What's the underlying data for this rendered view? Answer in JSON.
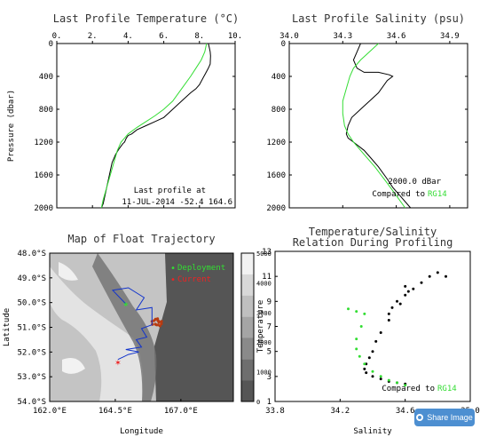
{
  "chart_data": [
    {
      "type": "line",
      "title": "Last Profile Temperature (°C)",
      "xlabel": "",
      "ylabel": "Pressure (dbar)",
      "xlim": [
        0,
        10
      ],
      "ylim": [
        2000,
        0
      ],
      "xticks": [
        "0.",
        "2.",
        "4.",
        "6.",
        "8.",
        "10."
      ],
      "yticks": [
        "0",
        "400",
        "800",
        "1200",
        "1600",
        "2000"
      ],
      "annotation_lines": [
        "Last profile at",
        "11-JUL-2014   -52.4  164.6"
      ],
      "series": [
        {
          "color": "#000000",
          "x": [
            8.5,
            8.55,
            8.6,
            8.62,
            8.6,
            8.5,
            8.3,
            8.25,
            8.0,
            7.8,
            7.5,
            7.0,
            6.5,
            6.0,
            5.5,
            5.0,
            4.5,
            4.2,
            4.0,
            3.9,
            3.8,
            3.7,
            3.5,
            3.3,
            3.1,
            3.0,
            2.9,
            2.8,
            2.7,
            2.6,
            2.5
          ],
          "y": [
            0,
            50,
            100,
            150,
            250,
            300,
            380,
            400,
            500,
            550,
            600,
            700,
            800,
            900,
            950,
            1000,
            1050,
            1100,
            1120,
            1150,
            1200,
            1220,
            1280,
            1350,
            1450,
            1550,
            1650,
            1750,
            1850,
            1950,
            2000
          ]
        },
        {
          "color": "#33dd33",
          "x": [
            8.4,
            8.3,
            8.1,
            7.8,
            7.5,
            7.0,
            6.5,
            6.0,
            5.5,
            5.0,
            4.5,
            4.0,
            3.8,
            3.6,
            3.4,
            3.2,
            3.0,
            2.8,
            2.6,
            2.5
          ],
          "y": [
            0,
            100,
            200,
            300,
            400,
            550,
            700,
            800,
            880,
            950,
            1020,
            1100,
            1150,
            1200,
            1300,
            1450,
            1600,
            1750,
            1900,
            2000
          ]
        }
      ]
    },
    {
      "type": "line",
      "title": "Last Profile Salinity (psu)",
      "xlabel": "",
      "ylabel": "",
      "xlim": [
        34.0,
        35.0
      ],
      "ylim": [
        2000,
        0
      ],
      "xticks": [
        "34.0",
        "34.3",
        "34.6",
        "34.9"
      ],
      "yticks": [
        "0",
        "400",
        "800",
        "1200",
        "1600",
        "2000"
      ],
      "annotation_lines": [
        "2000.0 dBar",
        "Compared to"
      ],
      "annotation_highlight": "RG14",
      "series": [
        {
          "color": "#000000",
          "x": [
            34.4,
            34.38,
            34.36,
            34.38,
            34.42,
            34.5,
            34.56,
            34.58,
            34.55,
            34.5,
            34.45,
            34.4,
            34.35,
            34.33,
            34.32,
            34.33,
            34.36,
            34.42,
            34.46,
            34.5,
            34.55,
            34.58,
            34.62,
            34.68
          ],
          "y": [
            0,
            100,
            200,
            300,
            350,
            350,
            380,
            400,
            450,
            600,
            700,
            800,
            900,
            1000,
            1100,
            1150,
            1200,
            1300,
            1400,
            1500,
            1650,
            1750,
            1850,
            2000
          ]
        },
        {
          "color": "#33dd33",
          "x": [
            34.5,
            34.45,
            34.4,
            34.36,
            34.34,
            34.32,
            34.3,
            34.3,
            34.31,
            34.33,
            34.36,
            34.42,
            34.48,
            34.55,
            34.6,
            34.65
          ],
          "y": [
            0,
            100,
            200,
            300,
            400,
            550,
            700,
            850,
            1000,
            1100,
            1200,
            1350,
            1500,
            1700,
            1850,
            2000
          ]
        }
      ]
    },
    {
      "type": "heatmap",
      "title": "Map of Float Trajectory",
      "xlabel": "Longitude",
      "ylabel": "Latitude",
      "xlim": [
        162.0,
        169.0
      ],
      "ylim": [
        54.0,
        48.0
      ],
      "xticks": [
        "162.0°E",
        "164.5°E",
        "167.0°E"
      ],
      "yticks": [
        "48.0°S",
        "49.0°S",
        "50.0°S",
        "51.0°S",
        "52.0°S",
        "53.0°S",
        "54.0°S"
      ],
      "colorbar_ticks": [
        "5000",
        "4000",
        "3000",
        "2000",
        "1000",
        "0"
      ],
      "legend": [
        {
          "label": "Deployment",
          "color": "#33dd33"
        },
        {
          "label": "Current",
          "color": "#ee2222"
        }
      ],
      "trajectory": {
        "color": "#1133cc",
        "lon": [
          164.9,
          164.4,
          165.0,
          165.6,
          165.3,
          165.9,
          165.9,
          165.5,
          165.7,
          165.3,
          165.5,
          164.9,
          165.4,
          165.0,
          164.8,
          164.6
        ],
        "lat": [
          50.05,
          49.5,
          49.4,
          49.8,
          50.3,
          50.2,
          50.9,
          51.05,
          51.4,
          51.5,
          51.8,
          51.9,
          52.0,
          52.1,
          52.2,
          52.3
        ]
      },
      "deployment": {
        "lon": 164.9,
        "lat": 50.05
      },
      "current": {
        "lon": 164.6,
        "lat": 52.4
      },
      "cluster": {
        "lon": 166.1,
        "lat": 50.8,
        "color": "#b83a10"
      }
    },
    {
      "type": "scatter",
      "title": "Temperature/Salinity",
      "subtitle": "Relation During Profiling",
      "xlabel": "Salinity",
      "ylabel": "Temperature",
      "xlim": [
        33.8,
        35.0
      ],
      "ylim": [
        1,
        13
      ],
      "xticks": [
        "33.8",
        "34.2",
        "34.6",
        "35.0"
      ],
      "yticks": [
        "1",
        "3",
        "5",
        "7",
        "9",
        "11",
        "13"
      ],
      "annotation": "Compared to",
      "annotation_highlight": "RG14",
      "series": [
        {
          "color": "#000000",
          "x": [
            34.5,
            34.52,
            34.55,
            34.6,
            34.65,
            34.7,
            34.75,
            34.8,
            34.85,
            34.6,
            34.62,
            34.57,
            34.5,
            34.45,
            34.42,
            34.4,
            34.38,
            34.36,
            34.35,
            34.36,
            34.4,
            34.45,
            34.5,
            34.55,
            34.6
          ],
          "y": [
            8.0,
            8.5,
            9.0,
            9.5,
            10.0,
            10.5,
            11.0,
            11.3,
            11.0,
            10.2,
            9.8,
            8.8,
            7.5,
            6.5,
            5.8,
            5.0,
            4.5,
            4.0,
            3.6,
            3.3,
            3.0,
            2.8,
            2.6,
            2.5,
            2.4
          ]
        },
        {
          "color": "#33dd33",
          "x": [
            34.25,
            34.3,
            34.35,
            34.33,
            34.3,
            34.3,
            34.32,
            34.35,
            34.4,
            34.45,
            34.5,
            34.55,
            34.6
          ],
          "y": [
            8.4,
            8.2,
            8.0,
            7.0,
            6.0,
            5.2,
            4.6,
            4.0,
            3.4,
            3.0,
            2.7,
            2.5,
            2.3
          ]
        }
      ]
    }
  ],
  "share_button": {
    "label": "Share Image",
    "icon": "share-icon"
  }
}
